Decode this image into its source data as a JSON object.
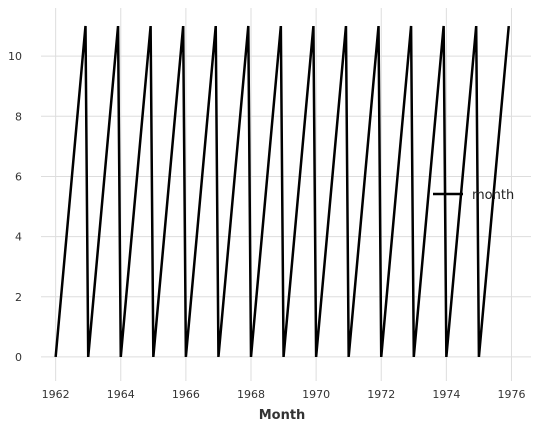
{
  "chart_data": {
    "type": "line",
    "title": "",
    "xlabel": "Month",
    "ylabel": "",
    "x_start": "1962-01",
    "x_end": "1975-12",
    "xlim": [
      1961.55,
      1976.6
    ],
    "ylim": [
      -0.8,
      11.6
    ],
    "xticks": [
      1962,
      1964,
      1966,
      1968,
      1970,
      1972,
      1974,
      1976
    ],
    "xtick_labels": [
      "1962",
      "1964",
      "1966",
      "1968",
      "1970",
      "1972",
      "1974",
      "1976"
    ],
    "yticks": [
      0,
      2,
      4,
      6,
      8,
      10
    ],
    "ytick_labels": [
      "0",
      "2",
      "4",
      "6",
      "8",
      "10"
    ],
    "grid": true,
    "legend_position": "right",
    "series": [
      {
        "name": "month",
        "color": "#000000",
        "pattern": "monthly index 0-11 repeating each year",
        "years": [
          1962,
          1963,
          1964,
          1965,
          1966,
          1967,
          1968,
          1969,
          1970,
          1971,
          1972,
          1973,
          1974,
          1975
        ],
        "values_per_year": [
          0,
          1,
          2,
          3,
          4,
          5,
          6,
          7,
          8,
          9,
          10,
          11
        ]
      }
    ]
  }
}
